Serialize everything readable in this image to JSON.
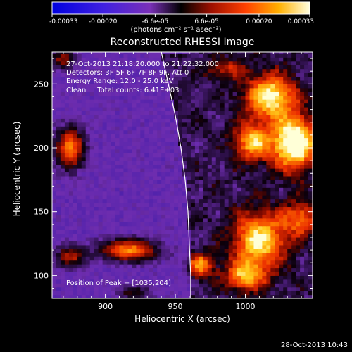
{
  "chart_data": {
    "type": "heatmap",
    "title": "Reconstructed RHESSI Image",
    "xlabel": "Heliocentric X (arcsec)",
    "ylabel": "Heliocentric Y (arcsec)",
    "xlim": [
      862,
      1048
    ],
    "ylim": [
      82,
      275
    ],
    "xticks": [
      900,
      950,
      1000
    ],
    "yticks": [
      100,
      150,
      200,
      250
    ],
    "colorbar": {
      "units": "(photons cm⁻² s⁻¹ asec⁻²)",
      "range": [
        -0.00033,
        0.00033
      ],
      "ticks": [
        {
          "value": -0.00033,
          "label": "-0.00033"
        },
        {
          "value": -0.0002,
          "label": "-0.00020"
        },
        {
          "value": -6.6e-05,
          "label": "-6.6e-05"
        },
        {
          "value": 6.6e-05,
          "label": "6.6e-05"
        },
        {
          "value": 0.0002,
          "label": "0.00020"
        },
        {
          "value": 0.00033,
          "label": "0.00033"
        }
      ]
    },
    "annotations": [
      "27-Oct-2013 21:18:20.000 to 21:22:32.000",
      "Detectors: 3F 5F 6F 7F 8F 9F, Att 0",
      "Energy Range: 12.0 - 25.0 keV",
      "Clean     Total counts: 6.41E+03"
    ],
    "peak_label": "Position of Peak = [1035,204]",
    "peak": [
      1035,
      204
    ],
    "limb": [
      [
        940,
        275
      ],
      [
        945,
        250
      ],
      [
        950,
        225
      ],
      [
        954,
        200
      ],
      [
        957,
        175
      ],
      [
        959,
        150
      ],
      [
        960,
        125
      ],
      [
        961,
        100
      ],
      [
        961,
        82
      ]
    ],
    "sources": [
      {
        "x": 1035,
        "y": 204,
        "sx": 11,
        "sy": 14,
        "amp": 1.0
      },
      {
        "x": 1018,
        "y": 240,
        "sx": 12,
        "sy": 12,
        "amp": 0.8
      },
      {
        "x": 1005,
        "y": 205,
        "sx": 9,
        "sy": 10,
        "amp": 0.65
      },
      {
        "x": 1010,
        "y": 128,
        "sx": 13,
        "sy": 15,
        "amp": 0.75
      },
      {
        "x": 1040,
        "y": 145,
        "sx": 9,
        "sy": 9,
        "amp": 0.5
      },
      {
        "x": 1000,
        "y": 100,
        "sx": 10,
        "sy": 8,
        "amp": 0.6
      },
      {
        "x": 968,
        "y": 108,
        "sx": 6,
        "sy": 6,
        "amp": 0.6
      },
      {
        "x": 917,
        "y": 120,
        "sx": 14,
        "sy": 6,
        "amp": 0.7
      },
      {
        "x": 875,
        "y": 115,
        "sx": 8,
        "sy": 6,
        "amp": 0.45
      },
      {
        "x": 875,
        "y": 200,
        "sx": 7,
        "sy": 11,
        "amp": 0.7
      },
      {
        "x": 870,
        "y": 270,
        "sx": 6,
        "sy": 6,
        "amp": 0.4
      },
      {
        "x": 985,
        "y": 262,
        "sx": 10,
        "sy": 6,
        "amp": 0.3
      },
      {
        "x": 920,
        "y": 87,
        "sx": 8,
        "sy": 4,
        "amp": 0.3
      }
    ]
  },
  "footer_date": "28-Oct-2013 10:43"
}
